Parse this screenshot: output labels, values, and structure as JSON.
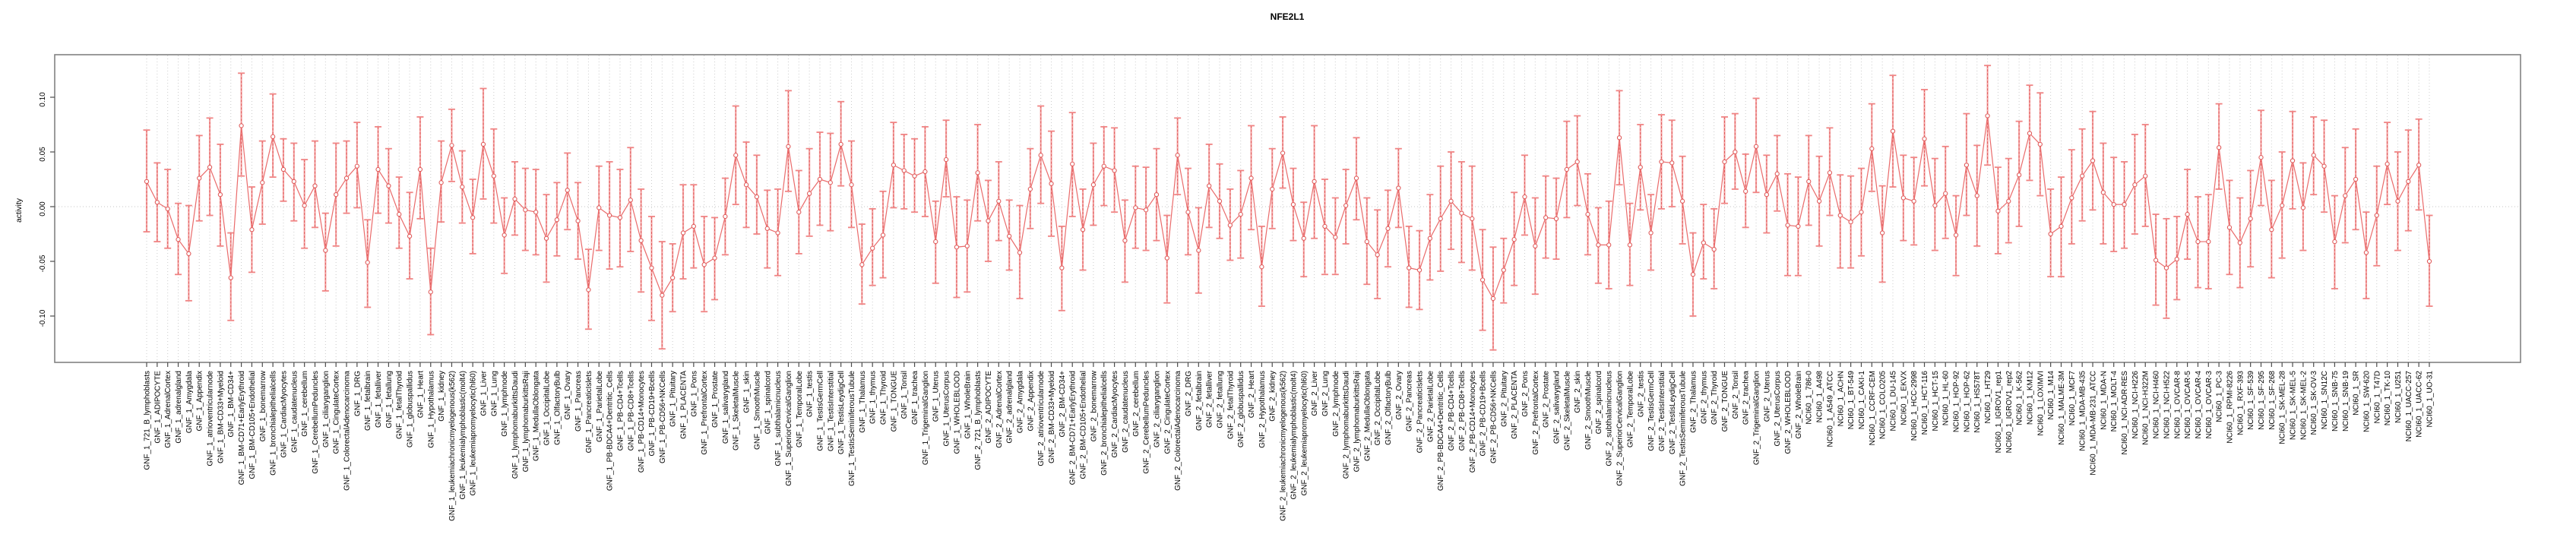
{
  "chart_data": {
    "type": "line",
    "subtype": "points-with-error-bars",
    "title": "NFE2L1",
    "xlabel": "",
    "ylabel": "activity",
    "ylim": [
      -0.142,
      0.139
    ],
    "ytick_values": [
      -0.1,
      -0.05,
      0.0,
      0.05,
      0.1
    ],
    "ytick_labels": [
      "-0.10",
      "-0.05",
      "0.00",
      "0.05",
      "0.10"
    ],
    "grid": "vertical-dotted-per-category-plus-zero-line",
    "legend": "none",
    "colors": {
      "bar_light": "#f5a8a8",
      "bar_cap": "#f08484",
      "bar_dash": "#e05c5c",
      "line": "#ea6b6b",
      "marker_stroke": "#e05c5c",
      "marker_fill": "#ffffff",
      "box": "#828282",
      "tick": "#4d4d4d",
      "gridline": "#cccccc",
      "text": "#000000"
    },
    "categories": [
      "GNF_1_721_B_lymphoblasts",
      "GNF_1_ADIPOCYTE",
      "GNF_1_AdrenalCortex",
      "GNF_1_adrenalgland",
      "GNF_1_Amygdala",
      "GNF_1_Appendix",
      "GNF_1_atrioventricularnode",
      "GNF_1_BM-CD33+Myeloid",
      "GNF_1_BM-CD34+",
      "GNF_1_BM-CD71+EarlyErythroid",
      "GNF_1_BM-CD105+Endothelial",
      "GNF_1_bonemarrow",
      "GNF_1_bronchialepithelialcells",
      "GNF_1_CardiacMyocytes",
      "GNF_1_caudatenucleus",
      "GNF_1_cerebellum",
      "GNF_1_CerebellumPeduncles",
      "GNF_1_ciliaryganglion",
      "GNF_1_CingulateCortex",
      "GNF_1_ColorectalAdenocarcinoma",
      "GNF_1_DRG",
      "GNF_1_fetalbrain",
      "GNF_1_fetalliver",
      "GNF_1_fetallung",
      "GNF_1_fetalThyroid",
      "GNF_1_globuspallidus",
      "GNF_1_Heart",
      "GNF_1_Hypothalamus",
      "GNF_1_kidney",
      "GNF_1_leukemiachronicmyelogenous(k562)",
      "GNF_1_leukemialymphoblastic(molt4)",
      "GNF_1_leukemiapromyelocytic(hl60)",
      "GNF_1_Liver",
      "GNF_1_Lung",
      "GNF_1_lymphnode",
      "GNF_1_lymphomaburkittsDaudi",
      "GNF_1_lymphomaburkittsRaji",
      "GNF_1_MedullaOblongata",
      "GNF_1_OccipitalLobe",
      "GNF_1_OlfactoryBulb",
      "GNF_1_Ovary",
      "GNF_1_Pancreas",
      "GNF_1_PancreaticIslets",
      "GNF_1_ParietalLobe",
      "GNF_1_PB-BDCA4+Dentritic_Cells",
      "GNF_1_PB-CD4+Tcells",
      "GNF_1_PB-CD8+Tcells",
      "GNF_1_PB-CD14+Monocytes",
      "GNF_1_PB-CD19+Bcells",
      "GNF_1_PB-CD56+NKCells",
      "GNF_1_Pituitary",
      "GNF_1_PLACENTA",
      "GNF_1_Pons",
      "GNF_1_PrefrontalCortex",
      "GNF_1_Prostate",
      "GNF_1_salivarygland",
      "GNF_1_SkeletalMuscle",
      "GNF_1_skin",
      "GNF_1_SmoothMuscle",
      "GNF_1_spinalcord",
      "GNF_1_subthalamicnucleus",
      "GNF_1_SuperiorCervicalGanglion",
      "GNF_1_TemporalLobe",
      "GNF_1_testis",
      "GNF_1_TestisGermCell",
      "GNF_1_TestisInterstitial",
      "GNF_1_TestisLeydigCell",
      "GNF_1_TestisSeminiferousTubule",
      "GNF_1_Thalamus",
      "GNF_1_thymus",
      "GNF_1_Thyroid",
      "GNF_1_TONGUE",
      "GNF_1_Tonsil",
      "GNF_1_trachea",
      "GNF_1_TrigeminalGanglion",
      "GNF_1_Uterus",
      "GNF_1_UterusCorpus",
      "GNF_1_WHOLEBLOOD",
      "GNF_1_WholeBrain",
      "GNF_2_721_B_lymphoblasts",
      "GNF_2_ADIPOCYTE",
      "GNF_2_AdrenalCortex",
      "GNF_2_adrenalgland",
      "GNF_2_Amygdala",
      "GNF_2_Appendix",
      "GNF_2_atrioventricularnode",
      "GNF_2_BM-CD33+Myeloid",
      "GNF_2_BM-CD34+",
      "GNF_2_BM-CD71+EarlyErythroid",
      "GNF_2_BM-CD105+Endothelial",
      "GNF_2_bonemarrow",
      "GNF_2_bronchialepithelialcells",
      "GNF_2_CardiacMyocytes",
      "GNF_2_caudatenucleus",
      "GNF_2_cerebellum",
      "GNF_2_CerebellumPeduncles",
      "GNF_2_ciliaryganglion",
      "GNF_2_CingulateCortex",
      "GNF_2_ColorectalAdenocarcinoma",
      "GNF_2_DRG",
      "GNF_2_fetalbrain",
      "GNF_2_fetalliver",
      "GNF_2_fetallung",
      "GNF_2_fetalThyroid",
      "GNF_2_globuspallidus",
      "GNF_2_Heart",
      "GNF_2_Hypothalamus",
      "GNF_2_kidney",
      "GNF_2_leukemiachronicmyelogenous(k562)",
      "GNF_2_leukemialymphoblastic(molt4)",
      "GNF_2_leukemiapromyelocytic(hl60)",
      "GNF_2_Liver",
      "GNF_2_Lung",
      "GNF_2_lymphnode",
      "GNF_2_lymphomaburkittsDaudi",
      "GNF_2_lymphomaburkittsRaji",
      "GNF_2_MedullaOblongata",
      "GNF_2_OccipitalLobe",
      "GNF_2_OlfactoryBulb",
      "GNF_2_Ovary",
      "GNF_2_Pancreas",
      "GNF_2_PancreaticIslets",
      "GNF_2_ParietalLobe",
      "GNF_2_PB-BDCA4+Dentritic_Cells",
      "GNF_2_PB-CD4+Tcells",
      "GNF_2_PB-CD8+Tcells",
      "GNF_2_PB-CD14+Monocytes",
      "GNF_2_PB-CD19+Bcells",
      "GNF_2_PB-CD56+NKCells",
      "GNF_2_Pituitary",
      "GNF_2_PLACENTA",
      "GNF_2_Pons",
      "GNF_2_PrefrontalCortex",
      "GNF_2_Prostate",
      "GNF_2_salivarygland",
      "GNF_2_SkeletalMuscle",
      "GNF_2_skin",
      "GNF_2_SmoothMuscle",
      "GNF_2_spinalcord",
      "GNF_2_subthalamicnucleus",
      "GNF_2_SuperiorCervicalGanglion",
      "GNF_2_TemporalLobe",
      "GNF_2_testis",
      "GNF_2_TestisGermCell",
      "GNF_2_TestisInterstitial",
      "GNF_2_TestisLeydigCell",
      "GNF_2_TestisSeminiferousTubule",
      "GNF_2_Thalamus",
      "GNF_2_thymus",
      "GNF_2_Thyroid",
      "GNF_2_TONGUE",
      "GNF_2_Tonsil",
      "GNF_2_trachea",
      "GNF_2_TrigeminalGanglion",
      "GNF_2_Uterus",
      "GNF_2_UterusCorpus",
      "GNF_2_WHOLEBLOOD",
      "GNF_2_WholeBrain",
      "NCI60_1_786-0",
      "NCI60_1_A498",
      "NCI60_1_A549_ATCC",
      "NCI60_1_ACHN",
      "NCI60_1_BT-549",
      "NCI60_1_CAKI-1",
      "NCI60_1_CCRF-CEM",
      "NCI60_1_COLO205",
      "NCI60_1_DU-145",
      "NCI60_1_EKVX",
      "NCI60_1_HCC-2998",
      "NCI60_1_HCT-116",
      "NCI60_1_HCT-15",
      "NCI60_1_HL-60",
      "NCI60_1_HOP-92",
      "NCI60_1_HOP-62",
      "NCI60_1_HS578T",
      "NCI60_1_HT29",
      "NCI60_1_IGROV1_rep1",
      "NCI60_1_IGROV1_rep2",
      "NCI60_1_K-562",
      "NCI60_1_KM12",
      "NCI60_1_LOXIMVI",
      "NCI60_1_M14",
      "NCI60_1_MALME-3M",
      "NCI60_1_MCF7",
      "NCI60_1_MDA-MB-435",
      "NCI60_1_MDA-MB-231_ATCC",
      "NCI60_1_MDA-N",
      "NCI60_1_MOLT-4",
      "NCI60_1_NCI-ADR-RES",
      "NCI60_1_NCI-H226",
      "NCI60_1_NCI-H322M",
      "NCI60_1_NCI-H460",
      "NCI60_1_NCI-H522",
      "NCI60_1_OVCAR-8",
      "NCI60_1_OVCAR-5",
      "NCI60_1_OVCAR-4",
      "NCI60_1_OVCAR-3",
      "NCI60_1_PC-3",
      "NCI60_1_RPMI-8226",
      "NCI60_1_RXF-393",
      "NCI60_1_SF-539",
      "NCI60_1_SF-295",
      "NCI60_1_SF-268",
      "NCI60_1_SK-MEL-28",
      "NCI60_1_SK-MEL-5",
      "NCI60_1_SK-MEL-2",
      "NCI60_1_SK-OV-3",
      "NCI60_1_SN12C",
      "NCI60_1_SNB-75",
      "NCI60_1_SNB-19",
      "NCI60_1_SR",
      "NCI60_1_SW-620",
      "NCI60_1_T47D",
      "NCI60_1_TK-10",
      "NCI60_1_U251",
      "NCI60_1_UACC-257",
      "NCI60_1_UACC-62",
      "NCI60_1_UO-31"
    ],
    "values": [
      0.023,
      0.004,
      -0.002,
      -0.03,
      -0.043,
      0.026,
      0.036,
      0.011,
      -0.065,
      0.074,
      -0.021,
      0.022,
      0.064,
      0.034,
      0.023,
      0.001,
      0.019,
      -0.04,
      0.011,
      0.026,
      0.037,
      -0.051,
      0.034,
      0.019,
      -0.007,
      -0.027,
      0.034,
      -0.078,
      0.022,
      0.056,
      0.018,
      -0.01,
      0.057,
      0.028,
      -0.026,
      0.007,
      -0.003,
      -0.005,
      -0.029,
      -0.012,
      0.015,
      -0.013,
      -0.076,
      -0.001,
      -0.008,
      -0.01,
      0.006,
      -0.031,
      -0.056,
      -0.081,
      -0.065,
      -0.024,
      -0.018,
      -0.053,
      -0.047,
      -0.009,
      0.047,
      0.02,
      0.009,
      -0.02,
      -0.024,
      0.055,
      -0.005,
      0.012,
      0.025,
      0.022,
      0.057,
      0.02,
      -0.053,
      -0.038,
      -0.026,
      0.038,
      0.033,
      0.028,
      0.032,
      -0.032,
      0.043,
      -0.037,
      -0.036,
      0.031,
      -0.013,
      0.005,
      -0.027,
      -0.042,
      0.016,
      0.047,
      0.021,
      -0.056,
      0.039,
      -0.021,
      0.02,
      0.037,
      0.033,
      -0.031,
      -0.001,
      -0.003,
      0.011,
      -0.047,
      0.047,
      -0.005,
      -0.04,
      0.019,
      0.005,
      -0.017,
      -0.007,
      0.026,
      -0.055,
      0.016,
      0.049,
      0.002,
      -0.029,
      0.023,
      -0.018,
      -0.028,
      0.001,
      0.026,
      -0.032,
      -0.044,
      -0.02,
      0.017,
      -0.056,
      -0.058,
      -0.029,
      -0.011,
      0.005,
      -0.006,
      -0.011,
      -0.067,
      -0.084,
      -0.058,
      -0.03,
      0.009,
      -0.036,
      -0.01,
      -0.011,
      0.034,
      0.041,
      -0.007,
      -0.035,
      -0.035,
      0.063,
      -0.035,
      0.036,
      -0.024,
      0.041,
      0.04,
      0.005,
      -0.062,
      -0.033,
      -0.039,
      0.041,
      0.05,
      0.014,
      0.055,
      0.011,
      0.03,
      -0.017,
      -0.018,
      0.023,
      0.005,
      0.031,
      -0.008,
      -0.014,
      -0.005,
      0.053,
      -0.024,
      0.069,
      0.008,
      0.005,
      0.062,
      0.001,
      0.012,
      -0.026,
      0.038,
      0.01,
      0.083,
      -0.004,
      0.005,
      0.029,
      0.067,
      0.057,
      -0.025,
      -0.018,
      0.008,
      0.028,
      0.042,
      0.013,
      0.002,
      0.002,
      0.02,
      0.028,
      -0.049,
      -0.056,
      -0.048,
      -0.007,
      -0.032,
      -0.032,
      0.054,
      -0.019,
      -0.033,
      -0.011,
      0.045,
      -0.021,
      0.001,
      0.042,
      -0.001,
      0.047,
      0.037,
      -0.032,
      0.01,
      0.025,
      -0.042,
      -0.008,
      0.039,
      0.005,
      0.023,
      0.038,
      -0.05
    ],
    "ci_low": [
      -0.023,
      -0.032,
      -0.038,
      -0.062,
      -0.086,
      -0.013,
      -0.008,
      -0.036,
      -0.104,
      0.028,
      -0.06,
      -0.016,
      0.027,
      0.005,
      -0.013,
      -0.038,
      -0.019,
      -0.077,
      -0.036,
      -0.006,
      -0.001,
      -0.092,
      -0.006,
      -0.015,
      -0.038,
      -0.066,
      -0.011,
      -0.117,
      -0.014,
      0.023,
      -0.015,
      -0.043,
      0.007,
      -0.015,
      -0.061,
      -0.026,
      -0.04,
      -0.044,
      -0.069,
      -0.045,
      -0.021,
      -0.048,
      -0.112,
      -0.04,
      -0.057,
      -0.055,
      -0.041,
      -0.078,
      -0.104,
      -0.13,
      -0.096,
      -0.066,
      -0.056,
      -0.096,
      -0.085,
      -0.044,
      0.002,
      -0.019,
      -0.025,
      -0.056,
      -0.063,
      0.014,
      -0.043,
      -0.027,
      -0.017,
      -0.022,
      0.019,
      -0.019,
      -0.089,
      -0.072,
      -0.065,
      -0.001,
      -0.002,
      -0.005,
      -0.009,
      -0.07,
      0.009,
      -0.083,
      -0.078,
      -0.013,
      -0.05,
      -0.031,
      -0.058,
      -0.084,
      -0.02,
      0.003,
      -0.027,
      -0.095,
      -0.009,
      -0.058,
      -0.017,
      0.001,
      -0.005,
      -0.069,
      -0.038,
      -0.04,
      -0.031,
      -0.088,
      0.011,
      -0.044,
      -0.079,
      -0.019,
      -0.029,
      -0.049,
      -0.047,
      -0.021,
      -0.091,
      -0.02,
      0.017,
      -0.031,
      -0.064,
      -0.029,
      -0.062,
      -0.062,
      -0.034,
      -0.012,
      -0.071,
      -0.084,
      -0.055,
      -0.019,
      -0.092,
      -0.094,
      -0.067,
      -0.059,
      -0.039,
      -0.051,
      -0.058,
      -0.113,
      -0.131,
      -0.088,
      -0.072,
      -0.026,
      -0.08,
      -0.047,
      -0.048,
      -0.01,
      0.001,
      -0.044,
      -0.07,
      -0.075,
      0.02,
      -0.072,
      -0.003,
      -0.058,
      -0.002,
      0.0,
      -0.034,
      -0.1,
      -0.066,
      -0.075,
      0.003,
      0.016,
      -0.019,
      0.013,
      -0.024,
      -0.004,
      -0.063,
      -0.063,
      -0.017,
      -0.036,
      -0.008,
      -0.056,
      -0.056,
      -0.045,
      0.014,
      -0.069,
      0.018,
      -0.031,
      -0.035,
      0.019,
      -0.04,
      -0.029,
      -0.063,
      -0.008,
      -0.036,
      0.038,
      -0.043,
      -0.033,
      -0.018,
      0.024,
      0.01,
      -0.064,
      -0.064,
      -0.034,
      -0.013,
      -0.003,
      -0.034,
      -0.041,
      -0.038,
      -0.025,
      -0.018,
      -0.09,
      -0.102,
      -0.085,
      -0.048,
      -0.074,
      -0.075,
      0.016,
      -0.062,
      -0.074,
      -0.055,
      0.001,
      -0.065,
      -0.047,
      -0.002,
      -0.04,
      0.011,
      -0.005,
      -0.075,
      -0.033,
      -0.021,
      -0.084,
      -0.054,
      0.002,
      -0.04,
      -0.022,
      -0.003,
      -0.091
    ],
    "ci_high": [
      0.07,
      0.04,
      0.034,
      0.003,
      0.001,
      0.065,
      0.081,
      0.057,
      -0.024,
      0.122,
      0.018,
      0.06,
      0.103,
      0.062,
      0.058,
      0.043,
      0.06,
      -0.006,
      0.058,
      0.06,
      0.077,
      -0.012,
      0.073,
      0.053,
      0.027,
      0.013,
      0.082,
      -0.038,
      0.06,
      0.089,
      0.051,
      0.025,
      0.108,
      0.071,
      0.008,
      0.041,
      0.035,
      0.034,
      0.011,
      0.022,
      0.049,
      0.022,
      -0.039,
      0.037,
      0.041,
      0.034,
      0.054,
      0.016,
      -0.009,
      -0.032,
      -0.034,
      0.02,
      0.02,
      -0.009,
      -0.01,
      0.026,
      0.092,
      0.059,
      0.047,
      0.015,
      0.016,
      0.106,
      0.033,
      0.053,
      0.068,
      0.067,
      0.096,
      0.06,
      -0.016,
      -0.002,
      0.014,
      0.077,
      0.066,
      0.062,
      0.073,
      0.005,
      0.079,
      0.009,
      0.006,
      0.075,
      0.024,
      0.041,
      0.006,
      0.001,
      0.053,
      0.092,
      0.069,
      -0.018,
      0.086,
      0.016,
      0.058,
      0.073,
      0.072,
      0.006,
      0.037,
      0.036,
      0.053,
      -0.008,
      0.081,
      0.035,
      -0.001,
      0.057,
      0.039,
      0.016,
      0.033,
      0.074,
      -0.018,
      0.053,
      0.082,
      0.035,
      0.004,
      0.074,
      0.025,
      0.008,
      0.034,
      0.063,
      0.008,
      -0.003,
      0.015,
      0.053,
      -0.018,
      -0.022,
      0.011,
      0.037,
      0.05,
      0.041,
      0.037,
      -0.021,
      -0.037,
      -0.029,
      0.013,
      0.047,
      0.008,
      0.028,
      0.026,
      0.078,
      0.083,
      0.03,
      -0.001,
      0.005,
      0.106,
      0.003,
      0.075,
      0.011,
      0.084,
      0.079,
      0.046,
      -0.024,
      0.002,
      -0.002,
      0.082,
      0.085,
      0.048,
      0.099,
      0.047,
      0.065,
      0.03,
      0.027,
      0.065,
      0.046,
      0.072,
      0.029,
      0.028,
      0.035,
      0.094,
      0.019,
      0.12,
      0.047,
      0.045,
      0.107,
      0.044,
      0.055,
      0.01,
      0.085,
      0.056,
      0.129,
      0.036,
      0.044,
      0.078,
      0.111,
      0.104,
      0.016,
      0.027,
      0.052,
      0.071,
      0.087,
      0.058,
      0.045,
      0.041,
      0.066,
      0.075,
      -0.007,
      -0.011,
      -0.009,
      0.034,
      0.009,
      0.011,
      0.094,
      0.024,
      0.008,
      0.033,
      0.088,
      0.024,
      0.05,
      0.087,
      0.04,
      0.082,
      0.079,
      0.01,
      0.054,
      0.071,
      -0.005,
      0.037,
      0.077,
      0.05,
      0.07,
      0.08,
      -0.008
    ]
  }
}
